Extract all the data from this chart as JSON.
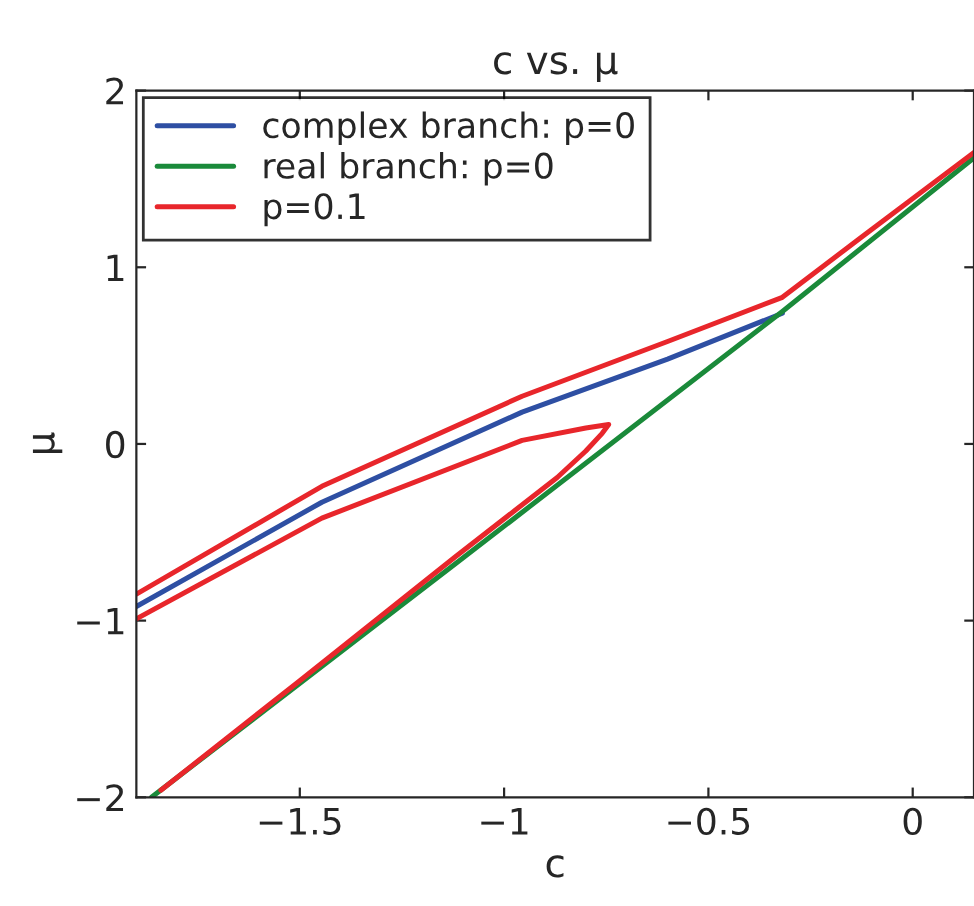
{
  "chart_data": {
    "type": "line",
    "title": "c vs. μ",
    "xlabel": "c",
    "ylabel": "μ",
    "xlim": [
      -1.9,
      0.15
    ],
    "xticks": [
      {
        "value": -1.5,
        "label": "−1.5"
      },
      {
        "value": -1,
        "label": "−1"
      },
      {
        "value": -0.5,
        "label": "−0.5"
      },
      0
    ],
    "ylim": [
      -2,
      2
    ],
    "yticks": [
      {
        "value": -2,
        "label": "−2"
      },
      {
        "value": -1,
        "label": "−1"
      },
      0,
      1,
      2
    ],
    "grid": false,
    "legend": "top left",
    "marker": "none",
    "line_style": "solid",
    "series": [
      {
        "name": "complex branch: p=0",
        "color": "#2e4fa3",
        "x": [
          -1.9,
          -1.446,
          -0.956,
          -0.6,
          -0.319
        ],
        "values": [
          -0.92,
          -0.33,
          0.18,
          0.48,
          0.74
        ]
      },
      {
        "name": "real branch: p=0",
        "color": "#1a8a3a",
        "x": [
          -1.863,
          -1.12,
          -0.319,
          0.15
        ],
        "values": [
          -2,
          -0.68,
          0.75,
          1.62
        ]
      },
      {
        "name": "p=0.1",
        "color": "#e8262b",
        "x": [
          -1.9,
          -1.446,
          -0.956,
          -0.6,
          -0.319,
          -0.12,
          0.15,
          null,
          -1.9,
          -1.446,
          -0.956,
          -0.8,
          -0.744,
          -0.76,
          -0.8,
          -0.87,
          -1.12,
          -1.5,
          -1.84
        ],
        "values": [
          -0.85,
          -0.24,
          0.27,
          0.58,
          0.83,
          1.18,
          1.65,
          null,
          -0.99,
          -0.42,
          0.02,
          0.09,
          0.11,
          0.06,
          -0.04,
          -0.19,
          -0.64,
          -1.34,
          -1.96
        ]
      }
    ]
  }
}
